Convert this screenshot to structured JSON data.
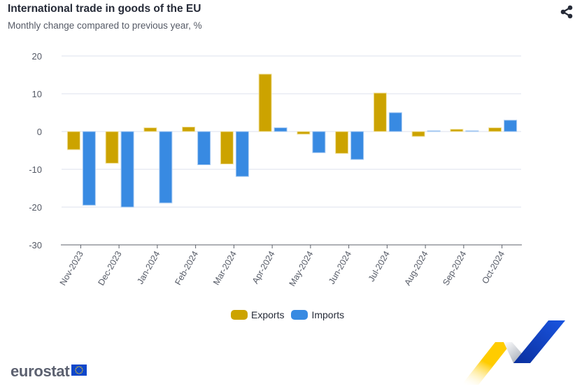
{
  "header": {
    "title": "International trade in goods of the EU",
    "subtitle": "Monthly change compared to previous year, %",
    "share_icon": "share-icon"
  },
  "legend": {
    "items": [
      {
        "label": "Exports",
        "color": "#cca300"
      },
      {
        "label": "Imports",
        "color": "#388ae2"
      }
    ]
  },
  "branding": {
    "logo_text": "eurostat",
    "flag_icon": "eu-flag-icon",
    "ribbon_icon": "eurostat-ribbon-graphic"
  },
  "chart_data": {
    "type": "bar",
    "title": "International trade in goods of the EU",
    "subtitle": "Monthly change compared to previous year, %",
    "xlabel": "",
    "ylabel": "",
    "ylim": [
      -30,
      20
    ],
    "yticks": [
      20,
      10,
      0,
      -10,
      -20,
      -30
    ],
    "grid": true,
    "legend_position": "bottom-center",
    "categories": [
      "Nov-2023",
      "Dec-2023",
      "Jan-2024",
      "Feb-2024",
      "Mar-2024",
      "Apr-2024",
      "May-2024",
      "Jun-2024",
      "Jul-2024",
      "Aug-2024",
      "Sep-2024",
      "Oct-2024"
    ],
    "series": [
      {
        "name": "Exports",
        "color": "#cca300",
        "values": [
          -4.8,
          -8.4,
          1.0,
          1.2,
          -8.6,
          15.2,
          -0.7,
          -5.8,
          10.2,
          -1.3,
          0.6,
          1.0
        ]
      },
      {
        "name": "Imports",
        "color": "#388ae2",
        "values": [
          -19.5,
          -20.0,
          -18.9,
          -8.8,
          -11.9,
          1.0,
          -5.6,
          -7.4,
          5.0,
          0.2,
          0.2,
          3.0
        ]
      }
    ]
  }
}
